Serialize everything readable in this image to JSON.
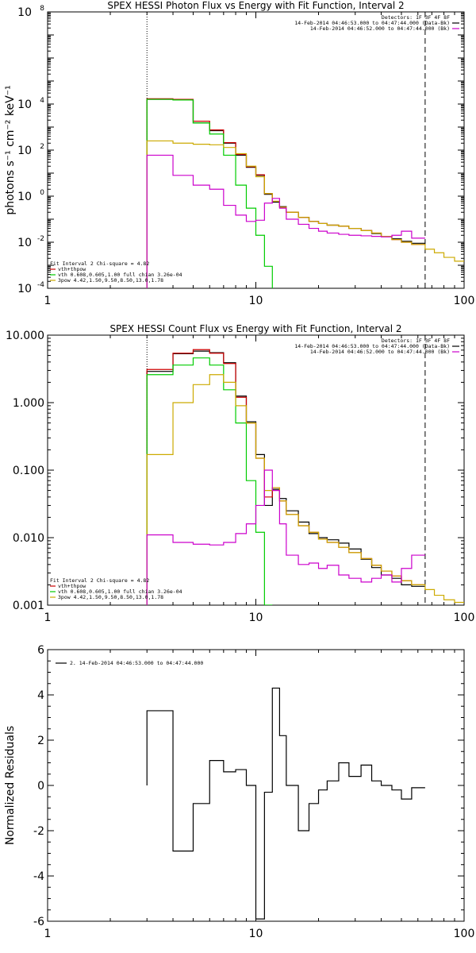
{
  "chart_data": [
    {
      "type": "line",
      "title": "SPEX HESSI Photon Flux vs Energy with Fit Function, Interval 2",
      "xlabel": "",
      "ylabel": "photons s⁻¹ cm⁻² keV⁻¹",
      "x_scale": "log",
      "y_scale": "log",
      "xlim": [
        1,
        100
      ],
      "ylim": [
        0.0001,
        100000000
      ],
      "xticks": [
        {
          "v": 1,
          "t": "1"
        },
        {
          "v": 10,
          "t": "10"
        },
        {
          "v": 100,
          "t": "100"
        }
      ],
      "yticks": [
        {
          "v": 0.0001,
          "b": "10",
          "e": "-4"
        },
        {
          "v": 0.01,
          "b": "10",
          "e": "-2"
        },
        {
          "v": 1,
          "b": "10",
          "e": "0"
        },
        {
          "v": 100,
          "b": "10",
          "e": "2"
        },
        {
          "v": 10000,
          "b": "10",
          "e": "4"
        },
        {
          "v": 100000000,
          "b": "10",
          "e": "8"
        }
      ],
      "vlines": [
        {
          "x": 3,
          "style": "dotted"
        },
        {
          "x": 65,
          "style": "dashed"
        }
      ],
      "legend_top_right": [
        {
          "text": "Detectors: 1F 3F 4F 8F",
          "color": "#000000"
        },
        {
          "text": "14-Feb-2014 04:46:53.000 to 04:47:44.000 (Data-Bk)",
          "color": "#000000"
        },
        {
          "text": "14-Feb-2014 04:46:52.000 to 04:47:44.000 (Bk)",
          "color": "#cc00cc"
        }
      ],
      "legend_bottom_left": [
        {
          "text": "Fit Interval 2   Chi-square = 4.82",
          "color": "#000000"
        },
        {
          "text": "vth+thpow",
          "color": "#cc0000"
        },
        {
          "text": "vth 0.608,0.605,1.00  full chian 3.26e-04",
          "color": "#00cc00"
        },
        {
          "text": "3pow 4.42,1.50,9.50,8.50,13.0,1.78",
          "color": "#ccaa00"
        }
      ],
      "edges": [
        3,
        4,
        5,
        6,
        7,
        8,
        9,
        10,
        11,
        12,
        13,
        14,
        16,
        18,
        20,
        22,
        25,
        28,
        32,
        36,
        40,
        45,
        50,
        56,
        65,
        72,
        80,
        90,
        100
      ],
      "series": [
        {
          "color": "#000000",
          "values": [
            16000,
            15000,
            1500,
            700,
            200,
            60,
            18,
            8,
            1.2,
            0.55,
            0.35,
            0.2,
            0.12,
            0.08,
            0.065,
            0.055,
            0.05,
            0.04,
            0.032,
            0.024,
            0.018,
            0.014,
            0.011,
            0.009
          ]
        },
        {
          "color": "#cc0000",
          "values": [
            17000,
            16000,
            1800,
            750,
            210,
            65,
            19,
            8.5,
            1.3,
            0.6,
            0.33,
            0.2,
            0.12,
            0.08,
            0.065,
            0.055,
            0.05,
            0.04,
            0.032,
            0.025,
            0.018,
            0.013,
            0.01,
            0.008
          ]
        },
        {
          "color": "#00cc00",
          "values": [
            16000,
            15000,
            1500,
            500,
            60,
            3,
            0.3,
            0.02,
            0.0009,
            2e-05
          ]
        },
        {
          "color": "#ccaa00",
          "values": [
            250,
            200,
            180,
            170,
            130,
            70,
            20,
            7,
            1.3,
            0.6,
            0.33,
            0.2,
            0.12,
            0.08,
            0.065,
            0.055,
            0.05,
            0.04,
            0.032,
            0.025,
            0.018,
            0.013,
            0.01,
            0.008,
            0.005,
            0.0035,
            0.0022,
            0.0015
          ]
        },
        {
          "color": "#cc00cc",
          "values": [
            60,
            8,
            3,
            2,
            0.4,
            0.15,
            0.08,
            0.09,
            0.5,
            0.8,
            0.3,
            0.1,
            0.06,
            0.04,
            0.03,
            0.025,
            0.022,
            0.02,
            0.019,
            0.018,
            0.017,
            0.02,
            0.03,
            0.015
          ]
        }
      ]
    },
    {
      "type": "line",
      "title": "SPEX HESSI Count Flux vs Energy with Fit Function, Interval 2",
      "xlabel": "",
      "ylabel": "",
      "x_scale": "log",
      "y_scale": "log",
      "xlim": [
        1,
        100
      ],
      "ylim": [
        0.001,
        10
      ],
      "xticks": [
        {
          "v": 1,
          "t": "1"
        },
        {
          "v": 10,
          "t": "10"
        },
        {
          "v": 100,
          "t": "100"
        }
      ],
      "yticks": [
        {
          "v": 0.001,
          "t": "0.001"
        },
        {
          "v": 0.01,
          "t": "0.010"
        },
        {
          "v": 0.1,
          "t": "0.100"
        },
        {
          "v": 1,
          "t": "1.000"
        },
        {
          "v": 10,
          "t": "10.000"
        }
      ],
      "vlines": [
        {
          "x": 3,
          "style": "dotted"
        },
        {
          "x": 65,
          "style": "dashed"
        }
      ],
      "legend_top_right": [
        {
          "text": "Detectors: 1F 3F 4F 8F",
          "color": "#000000"
        },
        {
          "text": "14-Feb-2014 04:46:53.000 to 04:47:44.000 (Data-Bk)",
          "color": "#000000"
        },
        {
          "text": "14-Feb-2014 04:46:52.000 to 04:47:44.000 (Bk)",
          "color": "#cc00cc"
        }
      ],
      "legend_bottom_left": [
        {
          "text": "Fit Interval 2   Chi-square = 4.82",
          "color": "#000000"
        },
        {
          "text": "vth+thpow",
          "color": "#cc0000"
        },
        {
          "text": "vth 0.608,0.605,1.00  full chian 3.26e-04",
          "color": "#00cc00"
        },
        {
          "text": "3pow 4.42,1.50,9.50,8.50,13.0,1.78",
          "color": "#ccaa00"
        }
      ],
      "edges": [
        3,
        4,
        5,
        6,
        7,
        8,
        9,
        10,
        11,
        12,
        13,
        14,
        16,
        18,
        20,
        22,
        25,
        28,
        32,
        36,
        40,
        45,
        50,
        56,
        65,
        72,
        80,
        90,
        100
      ],
      "series": [
        {
          "color": "#000000",
          "values": [
            2.9,
            5.3,
            5.8,
            5.5,
            3.9,
            1.25,
            0.52,
            0.17,
            0.03,
            0.052,
            0.038,
            0.025,
            0.017,
            0.0115,
            0.01,
            0.0093,
            0.0083,
            0.0068,
            0.0048,
            0.0036,
            0.0028,
            0.0025,
            0.002,
            0.0019
          ]
        },
        {
          "color": "#cc0000",
          "values": [
            3.1,
            5.4,
            6.1,
            5.4,
            3.8,
            1.2,
            0.5,
            0.15,
            0.04,
            0.055,
            0.035,
            0.022,
            0.015,
            0.012,
            0.0095,
            0.0085,
            0.0072,
            0.006,
            0.0049,
            0.0039,
            0.0032,
            0.0027,
            0.0023,
            0.002
          ]
        },
        {
          "color": "#00cc00",
          "values": [
            2.6,
            3.6,
            4.6,
            3.6,
            1.55,
            0.5,
            0.07,
            0.012,
            0.001
          ]
        },
        {
          "color": "#ccaa00",
          "values": [
            0.17,
            1.0,
            1.85,
            2.6,
            2.0,
            0.9,
            0.5,
            0.15,
            0.05,
            0.055,
            0.035,
            0.022,
            0.015,
            0.012,
            0.0095,
            0.0085,
            0.0072,
            0.006,
            0.0049,
            0.0039,
            0.0032,
            0.0027,
            0.0023,
            0.002,
            0.0017,
            0.0014,
            0.0012,
            0.0011
          ]
        },
        {
          "color": "#cc00cc",
          "values": [
            0.011,
            0.0085,
            0.008,
            0.0078,
            0.0085,
            0.0115,
            0.016,
            0.03,
            0.1,
            0.05,
            0.016,
            0.0055,
            0.004,
            0.0042,
            0.0035,
            0.0039,
            0.0028,
            0.0025,
            0.0022,
            0.0025,
            0.0028,
            0.0022,
            0.0035,
            0.0055
          ]
        }
      ]
    },
    {
      "type": "line",
      "title": "",
      "xlabel": "",
      "ylabel": "Normalized Residuals",
      "x_scale": "log",
      "y_scale": "linear",
      "xlim": [
        1,
        100
      ],
      "ylim": [
        -6,
        6
      ],
      "xticks": [
        {
          "v": 1,
          "t": "1"
        },
        {
          "v": 10,
          "t": "10"
        },
        {
          "v": 100,
          "t": "100"
        }
      ],
      "yticks": [
        {
          "v": -6,
          "t": "-6"
        },
        {
          "v": -4,
          "t": "-4"
        },
        {
          "v": -2,
          "t": "-2"
        },
        {
          "v": 0,
          "t": "0"
        },
        {
          "v": 2,
          "t": "2"
        },
        {
          "v": 4,
          "t": "4"
        },
        {
          "v": 6,
          "t": "6"
        }
      ],
      "legend_top_left": [
        {
          "text": "2. 14-Feb-2014 04:46:53.000 to 04:47:44.000",
          "color": "#000000"
        }
      ],
      "edges": [
        3,
        4,
        5,
        6,
        7,
        8,
        9,
        10,
        11,
        12,
        13,
        14,
        16,
        18,
        20,
        22,
        25,
        28,
        32,
        36,
        40,
        45,
        50,
        56,
        65
      ],
      "series": [
        {
          "color": "#000000",
          "values": [
            3.3,
            -2.9,
            -0.8,
            1.1,
            0.6,
            0.7,
            0.0,
            -5.9,
            -0.3,
            4.3,
            2.2,
            0.0,
            -2.0,
            -0.8,
            -0.2,
            0.2,
            1.0,
            0.4,
            0.9,
            0.2,
            0.0,
            -0.2,
            -0.6,
            -0.1
          ]
        }
      ]
    }
  ]
}
